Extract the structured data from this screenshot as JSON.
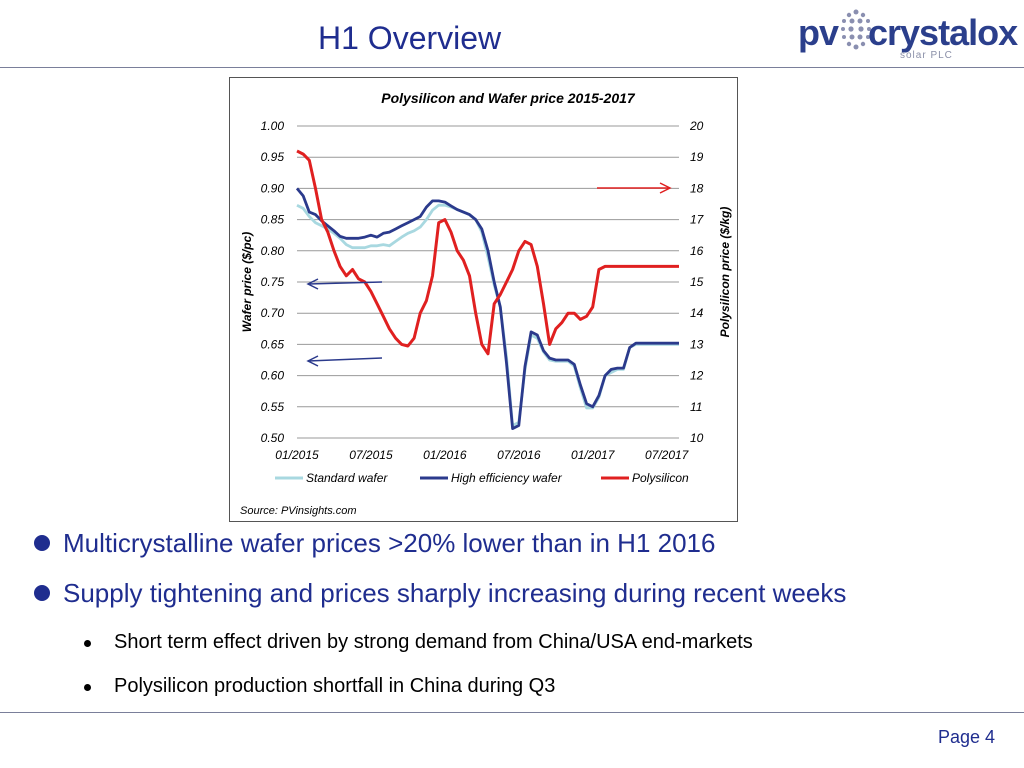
{
  "header": {
    "title": "H1 Overview"
  },
  "logo": {
    "brand_left": "pv",
    "brand_right": "crystalox",
    "tagline": "solar PLC"
  },
  "chart_data": {
    "type": "line",
    "title": "Polysilicon and Wafer price 2015-2017",
    "xlabel": "",
    "ylabel": "Wafer price ($/pc)",
    "y2label": "Polysilicon price ($/kg)",
    "ylim": [
      0.5,
      1.0
    ],
    "y2lim": [
      10,
      20
    ],
    "yticks": [
      "0.50",
      "0.55",
      "0.60",
      "0.65",
      "0.70",
      "0.75",
      "0.80",
      "0.85",
      "0.90",
      "0.95",
      "1.00"
    ],
    "y2ticks": [
      "10",
      "11",
      "12",
      "13",
      "14",
      "15",
      "16",
      "17",
      "18",
      "19",
      "20"
    ],
    "xticks": [
      "01/2015",
      "07/2015",
      "01/2016",
      "07/2016",
      "01/2017",
      "07/2017"
    ],
    "grid": true,
    "legend_position": "bottom",
    "source": "Source: PVinsights.com",
    "series": [
      {
        "name": "Standard wafer",
        "axis": "left",
        "color": "#a8d8e0",
        "x": [
          0,
          0.5,
          1,
          1.5,
          2,
          2.5,
          3,
          3.5,
          4,
          4.5,
          5,
          5.5,
          6,
          6.5,
          7,
          7.5,
          8,
          8.5,
          9,
          9.5,
          10,
          10.5,
          11,
          11.5,
          12,
          12.5,
          13,
          13.5,
          14,
          14.5,
          15,
          15.5,
          16,
          16.5,
          17,
          17.5,
          18,
          18.5,
          19,
          19.5,
          20,
          20.5,
          21,
          21.5,
          22,
          22.5,
          23,
          23.5,
          24,
          24.5,
          25,
          25.5,
          26,
          26.5,
          27,
          27.5,
          28,
          28.5,
          29,
          29.5,
          30,
          30.5,
          31
        ],
        "y": [
          0.873,
          0.868,
          0.855,
          0.845,
          0.84,
          0.835,
          0.828,
          0.82,
          0.81,
          0.805,
          0.805,
          0.805,
          0.808,
          0.808,
          0.81,
          0.808,
          0.815,
          0.822,
          0.828,
          0.832,
          0.838,
          0.85,
          0.865,
          0.873,
          0.873,
          0.87,
          0.866,
          0.862,
          0.858,
          0.85,
          0.83,
          0.79,
          0.745,
          0.71,
          0.63,
          0.52,
          0.525,
          0.61,
          0.665,
          0.66,
          0.638,
          0.625,
          0.623,
          0.623,
          0.623,
          0.615,
          0.58,
          0.548,
          0.548,
          0.565,
          0.6,
          0.605,
          0.61,
          0.61,
          0.645,
          0.65,
          0.65,
          0.65,
          0.65,
          0.65,
          0.65,
          0.65,
          0.65
        ]
      },
      {
        "name": "High efficiency wafer",
        "axis": "left",
        "color": "#2b3a8c",
        "x": [
          0,
          0.5,
          1,
          1.5,
          2,
          2.5,
          3,
          3.5,
          4,
          4.5,
          5,
          5.5,
          6,
          6.5,
          7,
          7.5,
          8,
          8.5,
          9,
          9.5,
          10,
          10.5,
          11,
          11.5,
          12,
          12.5,
          13,
          13.5,
          14,
          14.5,
          15,
          15.5,
          16,
          16.5,
          17,
          17.5,
          18,
          18.5,
          19,
          19.5,
          20,
          20.5,
          21,
          21.5,
          22,
          22.5,
          23,
          23.5,
          24,
          24.5,
          25,
          25.5,
          26,
          26.5,
          27,
          27.5,
          28,
          28.5,
          29,
          29.5,
          30,
          30.5,
          31
        ],
        "y": [
          0.9,
          0.888,
          0.862,
          0.858,
          0.848,
          0.84,
          0.832,
          0.823,
          0.82,
          0.82,
          0.82,
          0.822,
          0.825,
          0.822,
          0.828,
          0.83,
          0.835,
          0.84,
          0.845,
          0.85,
          0.855,
          0.87,
          0.88,
          0.88,
          0.878,
          0.872,
          0.866,
          0.862,
          0.858,
          0.85,
          0.835,
          0.8,
          0.75,
          0.71,
          0.62,
          0.515,
          0.52,
          0.615,
          0.67,
          0.665,
          0.64,
          0.628,
          0.625,
          0.625,
          0.625,
          0.618,
          0.585,
          0.555,
          0.55,
          0.568,
          0.6,
          0.61,
          0.612,
          0.612,
          0.645,
          0.652,
          0.652,
          0.652,
          0.652,
          0.652,
          0.652,
          0.652,
          0.652
        ]
      },
      {
        "name": "Polysilicon",
        "axis": "right",
        "color": "#e02020",
        "x": [
          0,
          0.5,
          1,
          1.5,
          2,
          2.5,
          3,
          3.5,
          4,
          4.5,
          5,
          5.5,
          6,
          6.5,
          7,
          7.5,
          8,
          8.5,
          9,
          9.5,
          10,
          10.5,
          11,
          11.5,
          12,
          12.5,
          13,
          13.5,
          14,
          14.5,
          15,
          15.5,
          16,
          16.5,
          17,
          17.5,
          18,
          18.5,
          19,
          19.5,
          20,
          20.5,
          21,
          21.5,
          22,
          22.5,
          23,
          23.5,
          24,
          24.5,
          25,
          25.5,
          26,
          26.5,
          27,
          27.5,
          28,
          28.5,
          29,
          29.5,
          30,
          30.5,
          31
        ],
        "y": [
          19.2,
          19.1,
          18.9,
          18.0,
          17.0,
          16.6,
          16.0,
          15.5,
          15.2,
          15.4,
          15.1,
          15.0,
          14.7,
          14.3,
          13.9,
          13.5,
          13.2,
          13.0,
          12.95,
          13.2,
          14.0,
          14.4,
          15.2,
          16.9,
          17.0,
          16.6,
          16.0,
          15.7,
          15.2,
          14.0,
          13.0,
          12.7,
          14.3,
          14.6,
          15.0,
          15.4,
          16.0,
          16.3,
          16.2,
          15.5,
          14.3,
          13.0,
          13.5,
          13.7,
          14.0,
          14.0,
          13.8,
          13.9,
          14.2,
          15.4,
          15.5,
          15.5,
          15.5,
          15.5,
          15.5,
          15.5,
          15.5,
          15.5,
          15.5,
          15.5,
          15.5,
          15.5,
          15.5
        ]
      }
    ]
  },
  "bullets": [
    {
      "text": "Multicrystalline wafer prices >20% lower than in H1 2016"
    },
    {
      "text": "Supply tightening and prices sharply increasing during recent weeks"
    }
  ],
  "sub_bullets": [
    {
      "text": "Short term effect driven by strong demand from China/USA end-markets"
    },
    {
      "text": "Polysilicon production shortfall in China during Q3"
    }
  ],
  "footer": {
    "page": "Page 4"
  },
  "colors": {
    "accent": "#1f2d8f",
    "polysilicon": "#e02020",
    "standard": "#a8d8e0",
    "high_eff": "#2b3a8c"
  },
  "icons": {
    "bullet": "bullet-dot-icon",
    "arrow": "arrow-icon"
  }
}
